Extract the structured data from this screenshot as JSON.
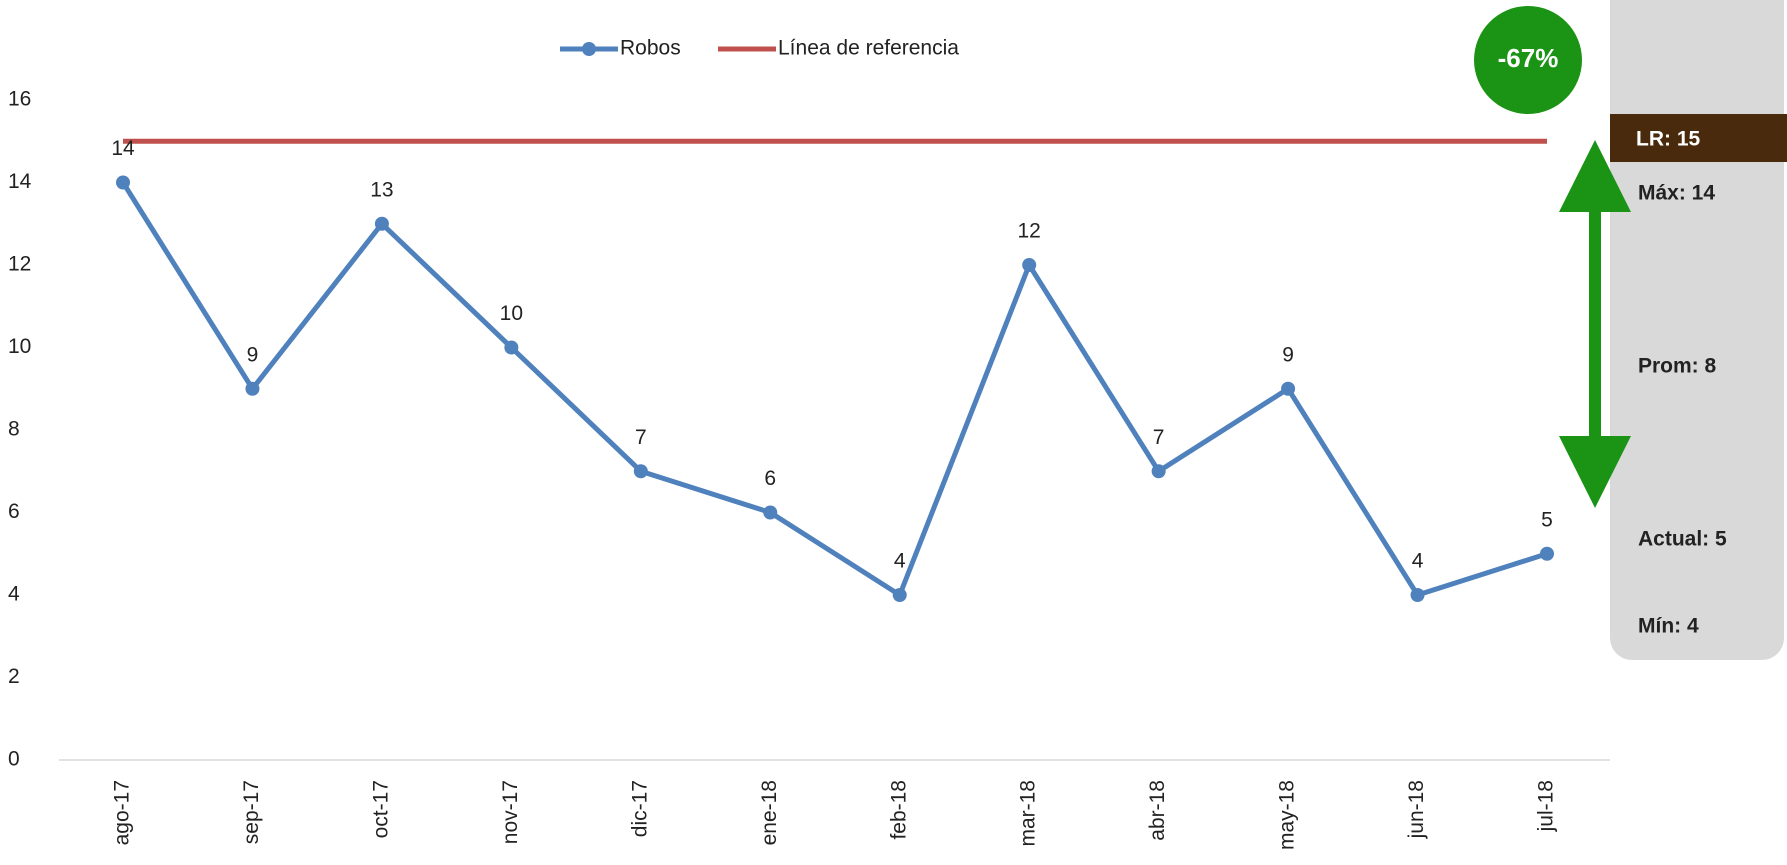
{
  "chart_data": {
    "type": "line",
    "categories": [
      "ago-17",
      "sep-17",
      "oct-17",
      "nov-17",
      "dic-17",
      "ene-18",
      "feb-18",
      "mar-18",
      "abr-18",
      "may-18",
      "jun-18",
      "jul-18"
    ],
    "series": [
      {
        "name": "Robos",
        "color": "#4f81bd",
        "values": [
          14,
          9,
          13,
          10,
          7,
          6,
          4,
          12,
          7,
          9,
          4,
          5
        ]
      },
      {
        "name": "Línea de referencia",
        "color": "#c0504d",
        "values": [
          15,
          15,
          15,
          15,
          15,
          15,
          15,
          15,
          15,
          15,
          15,
          15
        ]
      }
    ],
    "ylim": [
      0,
      16
    ],
    "yticks": [
      0,
      2,
      4,
      6,
      8,
      10,
      12,
      14,
      16
    ],
    "legend": "top",
    "badge": "-67%",
    "summary": {
      "lr": "LR:  15",
      "max": "Máx: 14",
      "avg": "Prom: 8",
      "current": "Actual: 5",
      "min": "Mín: 4"
    }
  }
}
